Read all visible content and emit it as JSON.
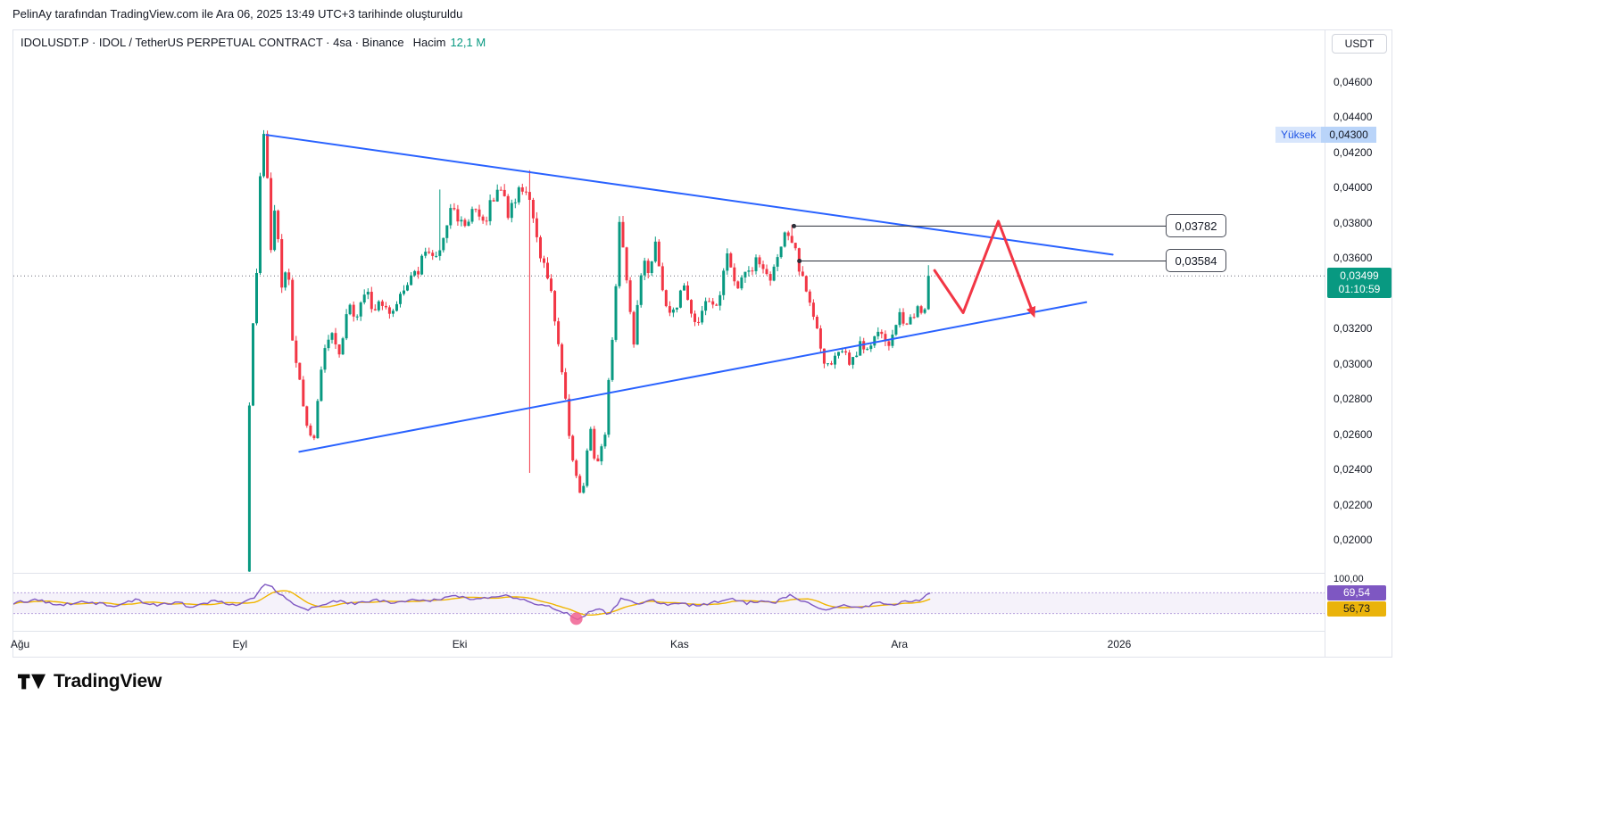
{
  "attribution": "PelinAy tarafından TradingView.com ile Ara 06, 2025 13:49 UTC+3 tarihinde oluşturuldu",
  "header": {
    "symbol_line": "IDOLUSDT.P · IDOL / TetherUS PERPETUAL CONTRACT · 4sa · Binance",
    "volume_label": "Hacim",
    "volume_value": "12,1 M"
  },
  "price_axis": {
    "currency_button": "USDT",
    "tick_labels": [
      "0,04600",
      "0,04400",
      "0,04200",
      "0,04000",
      "0,03800",
      "0,03600",
      "0,03200",
      "0,03000",
      "0,02800",
      "0,02600",
      "0,02400",
      "0,02200",
      "0,02000"
    ],
    "high_label": "Yüksek",
    "high_value": "0,04300",
    "last_price": "0,03499",
    "countdown": "01:10:59",
    "rsi_top_label": "100,00",
    "rsi_value": "69,54",
    "rsi_ma": "56,73"
  },
  "logo": {
    "text": "TradingView"
  },
  "colors": {
    "up": "#089981",
    "down": "#f23645",
    "trendline": "#2962ff",
    "projection": "#f23645",
    "level_line": "#2a2e39",
    "last_line": "#6a6d78",
    "rsi": "#7e57c2",
    "rsi_ma": "#f0b500",
    "rsi_band_fill": "rgba(126,87,194,0.08)",
    "rsi_band_line": "rgba(126,87,194,0.55)",
    "oversold_marker": "#f06292",
    "last_badge_bg": "#089981"
  },
  "chart_data": {
    "type": "candlestick",
    "symbol": "IDOLUSDT.P",
    "description": "IDOL / TetherUS PERPETUAL CONTRACT",
    "interval": "4sa",
    "exchange": "Binance",
    "volume_label": "12,1 M",
    "last_price": 0.03499,
    "high_marker": {
      "label": "Yüksek",
      "price": 0.043
    },
    "y_ticks": [
      0.046,
      0.044,
      0.042,
      0.04,
      0.038,
      0.036,
      0.032,
      0.03,
      0.028,
      0.026,
      0.024,
      0.022,
      0.02
    ],
    "x_ticks": [
      {
        "label": "Ağu",
        "m": 0
      },
      {
        "label": "Eyl",
        "m": 1
      },
      {
        "label": "Eki",
        "m": 2
      },
      {
        "label": "Kas",
        "m": 3
      },
      {
        "label": "Ara",
        "m": 4
      },
      {
        "label": "2026",
        "m": 5
      }
    ],
    "levels": [
      {
        "label": "0,03782",
        "price": 0.03782,
        "m_start": 3.52
      },
      {
        "label": "0,03584",
        "price": 0.03584,
        "m_start": 3.545
      }
    ],
    "trendlines": [
      {
        "name": "upper",
        "from": [
          1.12,
          0.043
        ],
        "to": [
          4.97,
          0.0362
        ]
      },
      {
        "name": "lower",
        "from": [
          1.27,
          0.025
        ],
        "to": [
          4.85,
          0.0335
        ]
      }
    ],
    "projection": {
      "points": [
        [
          4.16,
          0.0353
        ],
        [
          4.29,
          0.0329
        ],
        [
          4.45,
          0.0381
        ],
        [
          4.61,
          0.0328
        ]
      ]
    },
    "candles": {
      "m_start": 1.035,
      "m_end": 4.14,
      "count": 190,
      "keyframes": [
        [
          1.035,
          0.0182
        ],
        [
          1.055,
          0.03
        ],
        [
          1.08,
          0.034
        ],
        [
          1.105,
          0.0425
        ],
        [
          1.125,
          0.0428
        ],
        [
          1.15,
          0.036
        ],
        [
          1.17,
          0.039
        ],
        [
          1.2,
          0.034
        ],
        [
          1.225,
          0.0362
        ],
        [
          1.25,
          0.0308
        ],
        [
          1.28,
          0.029
        ],
        [
          1.315,
          0.0262
        ],
        [
          1.345,
          0.0256
        ],
        [
          1.38,
          0.03
        ],
        [
          1.42,
          0.0318
        ],
        [
          1.46,
          0.0305
        ],
        [
          1.5,
          0.0332
        ],
        [
          1.54,
          0.0326
        ],
        [
          1.58,
          0.0342
        ],
        [
          1.62,
          0.033
        ],
        [
          1.66,
          0.0336
        ],
        [
          1.7,
          0.0329
        ],
        [
          1.74,
          0.0338
        ],
        [
          1.78,
          0.0348
        ],
        [
          1.82,
          0.0352
        ],
        [
          1.86,
          0.0368
        ],
        [
          1.9,
          0.036
        ],
        [
          1.93,
          0.0372
        ],
        [
          1.97,
          0.039
        ],
        [
          2.02,
          0.0378
        ],
        [
          2.07,
          0.0386
        ],
        [
          2.12,
          0.038
        ],
        [
          2.16,
          0.0395
        ],
        [
          2.19,
          0.0402
        ],
        [
          2.23,
          0.0385
        ],
        [
          2.27,
          0.0396
        ],
        [
          2.31,
          0.04
        ],
        [
          2.36,
          0.0368
        ],
        [
          2.42,
          0.0345
        ],
        [
          2.47,
          0.03
        ],
        [
          2.52,
          0.0245
        ],
        [
          2.565,
          0.0222
        ],
        [
          2.6,
          0.0265
        ],
        [
          2.63,
          0.024
        ],
        [
          2.67,
          0.0262
        ],
        [
          2.71,
          0.033
        ],
        [
          2.735,
          0.038
        ],
        [
          2.77,
          0.0345
        ],
        [
          2.8,
          0.031
        ],
        [
          2.84,
          0.0362
        ],
        [
          2.87,
          0.0348
        ],
        [
          2.9,
          0.0368
        ],
        [
          2.94,
          0.0336
        ],
        [
          2.98,
          0.0328
        ],
        [
          3.03,
          0.0345
        ],
        [
          3.08,
          0.032
        ],
        [
          3.13,
          0.0338
        ],
        [
          3.18,
          0.0332
        ],
        [
          3.22,
          0.0362
        ],
        [
          3.27,
          0.0342
        ],
        [
          3.32,
          0.0352
        ],
        [
          3.37,
          0.036
        ],
        [
          3.42,
          0.0346
        ],
        [
          3.47,
          0.0368
        ],
        [
          3.51,
          0.0376
        ],
        [
          3.55,
          0.0355
        ],
        [
          3.59,
          0.0338
        ],
        [
          3.63,
          0.032
        ],
        [
          3.67,
          0.0298
        ],
        [
          3.71,
          0.0303
        ],
        [
          3.75,
          0.0308
        ],
        [
          3.79,
          0.03
        ],
        [
          3.83,
          0.0312
        ],
        [
          3.87,
          0.0306
        ],
        [
          3.91,
          0.0318
        ],
        [
          3.96,
          0.0312
        ],
        [
          4.01,
          0.0328
        ],
        [
          4.05,
          0.0322
        ],
        [
          4.09,
          0.0334
        ],
        [
          4.12,
          0.033
        ],
        [
          4.14,
          0.0349
        ]
      ],
      "spikes": [
        {
          "m": 1.915,
          "high": 0.0399
        },
        {
          "m": 2.315,
          "high": 0.041,
          "low": 0.0238
        },
        {
          "m": 2.735,
          "high": 0.0384
        },
        {
          "m": 3.512,
          "high": 0.0379
        },
        {
          "m": 4.135,
          "high": 0.0356
        }
      ]
    },
    "rsi": {
      "value": 69.54,
      "ma_value": 56.73,
      "bands": [
        70,
        30
      ],
      "scale_top": 100,
      "oversold_marker": {
        "m": 2.53,
        "value": 20
      },
      "keyframes": [
        [
          -0.05,
          50
        ],
        [
          0.08,
          57
        ],
        [
          0.18,
          46
        ],
        [
          0.3,
          54
        ],
        [
          0.42,
          44
        ],
        [
          0.52,
          56
        ],
        [
          0.62,
          47
        ],
        [
          0.72,
          53
        ],
        [
          0.78,
          40
        ],
        [
          0.88,
          56
        ],
        [
          0.98,
          47
        ],
        [
          1.06,
          60
        ],
        [
          1.12,
          90
        ],
        [
          1.2,
          62
        ],
        [
          1.3,
          36
        ],
        [
          1.42,
          55
        ],
        [
          1.52,
          48
        ],
        [
          1.62,
          56
        ],
        [
          1.72,
          50
        ],
        [
          1.82,
          58
        ],
        [
          1.9,
          55
        ],
        [
          1.97,
          65
        ],
        [
          2.05,
          58
        ],
        [
          2.12,
          62
        ],
        [
          2.19,
          66
        ],
        [
          2.27,
          60
        ],
        [
          2.36,
          48
        ],
        [
          2.47,
          34
        ],
        [
          2.53,
          20
        ],
        [
          2.62,
          38
        ],
        [
          2.68,
          30
        ],
        [
          2.74,
          62
        ],
        [
          2.8,
          48
        ],
        [
          2.87,
          58
        ],
        [
          2.94,
          46
        ],
        [
          3.0,
          50
        ],
        [
          3.08,
          44
        ],
        [
          3.16,
          52
        ],
        [
          3.22,
          60
        ],
        [
          3.3,
          50
        ],
        [
          3.38,
          55
        ],
        [
          3.44,
          52
        ],
        [
          3.51,
          66
        ],
        [
          3.59,
          48
        ],
        [
          3.67,
          35
        ],
        [
          3.74,
          45
        ],
        [
          3.82,
          42
        ],
        [
          3.9,
          50
        ],
        [
          3.98,
          48
        ],
        [
          4.05,
          55
        ],
        [
          4.1,
          58
        ],
        [
          4.14,
          69.5
        ]
      ]
    }
  }
}
